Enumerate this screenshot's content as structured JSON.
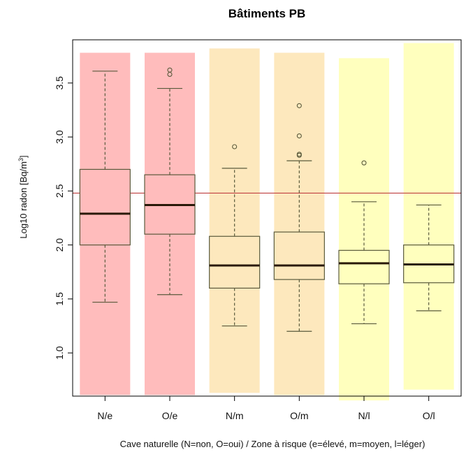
{
  "chart_data": {
    "type": "box",
    "title": "Bâtiments PB",
    "xlabel": "Cave naturelle (N=non, O=oui) / Zone à risque (e=élevé, m=moyen, l=léger)",
    "ylabel_main": "Log10 radon [Bq/m",
    "ylabel_sup": "3",
    "ylabel_tail": "]",
    "ylim": [
      0.6,
      3.9
    ],
    "yticks": [
      1.0,
      1.5,
      2.0,
      2.5,
      3.0,
      3.5
    ],
    "ytick_labels": [
      "1.0",
      "1.5",
      "2.0",
      "2.5",
      "3.0",
      "3.5"
    ],
    "reference_line": 2.48,
    "reference_line_color": "#c04040",
    "categories": [
      "N/e",
      "O/e",
      "N/m",
      "O/m",
      "N/l",
      "O/l"
    ],
    "boxes": [
      {
        "label": "N/e",
        "whisker_low": 1.47,
        "q1": 2.0,
        "median": 2.29,
        "q3": 2.7,
        "whisker_high": 3.61,
        "outliers": [],
        "bg_low": 0.61,
        "bg_high": 3.78,
        "bg_color": "#ffbcbc",
        "box_fill": "#ffbcbc"
      },
      {
        "label": "O/e",
        "whisker_low": 1.54,
        "q1": 2.1,
        "median": 2.37,
        "q3": 2.65,
        "whisker_high": 3.45,
        "outliers": [
          3.58,
          3.62
        ],
        "bg_low": 0.61,
        "bg_high": 3.78,
        "bg_color": "#ffbcbc",
        "box_fill": "#ffbcbc"
      },
      {
        "label": "N/m",
        "whisker_low": 1.25,
        "q1": 1.6,
        "median": 1.81,
        "q3": 2.08,
        "whisker_high": 2.71,
        "outliers": [
          2.91
        ],
        "bg_low": 0.63,
        "bg_high": 3.82,
        "bg_color": "#fde8bd",
        "box_fill": "#fde8bd"
      },
      {
        "label": "O/m",
        "whisker_low": 1.2,
        "q1": 1.68,
        "median": 1.81,
        "q3": 2.12,
        "whisker_high": 2.78,
        "outliers": [
          2.83,
          2.84,
          3.01,
          3.29
        ],
        "bg_low": 0.61,
        "bg_high": 3.78,
        "bg_color": "#fde8bd",
        "box_fill": "#fde8bd"
      },
      {
        "label": "N/l",
        "whisker_low": 1.27,
        "q1": 1.64,
        "median": 1.83,
        "q3": 1.95,
        "whisker_high": 2.4,
        "outliers": [
          2.76
        ],
        "bg_low": 0.56,
        "bg_high": 3.73,
        "bg_color": "#ffffbe",
        "box_fill": "#ffffbe"
      },
      {
        "label": "O/l",
        "whisker_low": 1.39,
        "q1": 1.65,
        "median": 1.82,
        "q3": 2.0,
        "whisker_high": 2.37,
        "outliers": [],
        "bg_low": 0.66,
        "bg_high": 3.87,
        "bg_color": "#ffffbe",
        "box_fill": "#ffffbe"
      }
    ]
  }
}
